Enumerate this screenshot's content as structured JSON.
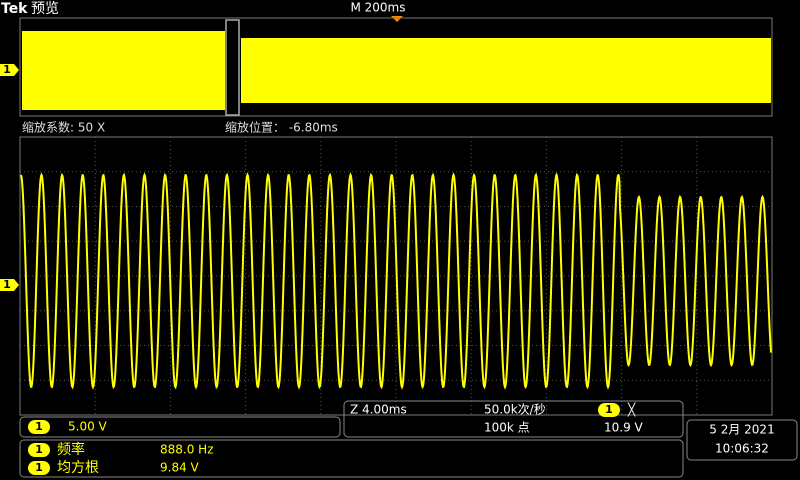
{
  "header": {
    "brand": "Tek",
    "mode": "预览",
    "timebase": "M 200ms"
  },
  "overview": {
    "channel": "1"
  },
  "zoom": {
    "factor": "缩放系数: 50 X",
    "position": "缩放位置： -6.80ms"
  },
  "main": {
    "channel": "1"
  },
  "channel_scale": {
    "channel": "1",
    "scale": "5.00 V"
  },
  "acquisition": {
    "zoom_timebase": "Z 4.00ms",
    "sample_rate": "50.0k次/秒",
    "record_length": "100k 点",
    "trigger_channel": "1",
    "trigger_symbol": "╳",
    "trigger_level": "10.9 V"
  },
  "measurements": [
    {
      "channel": "1",
      "name": "频率",
      "value": "888.0 Hz"
    },
    {
      "channel": "1",
      "name": "均方根",
      "value": "9.84 V"
    }
  ],
  "datetime": {
    "date": "5 2月 2021",
    "time": "10:06:32"
  }
}
